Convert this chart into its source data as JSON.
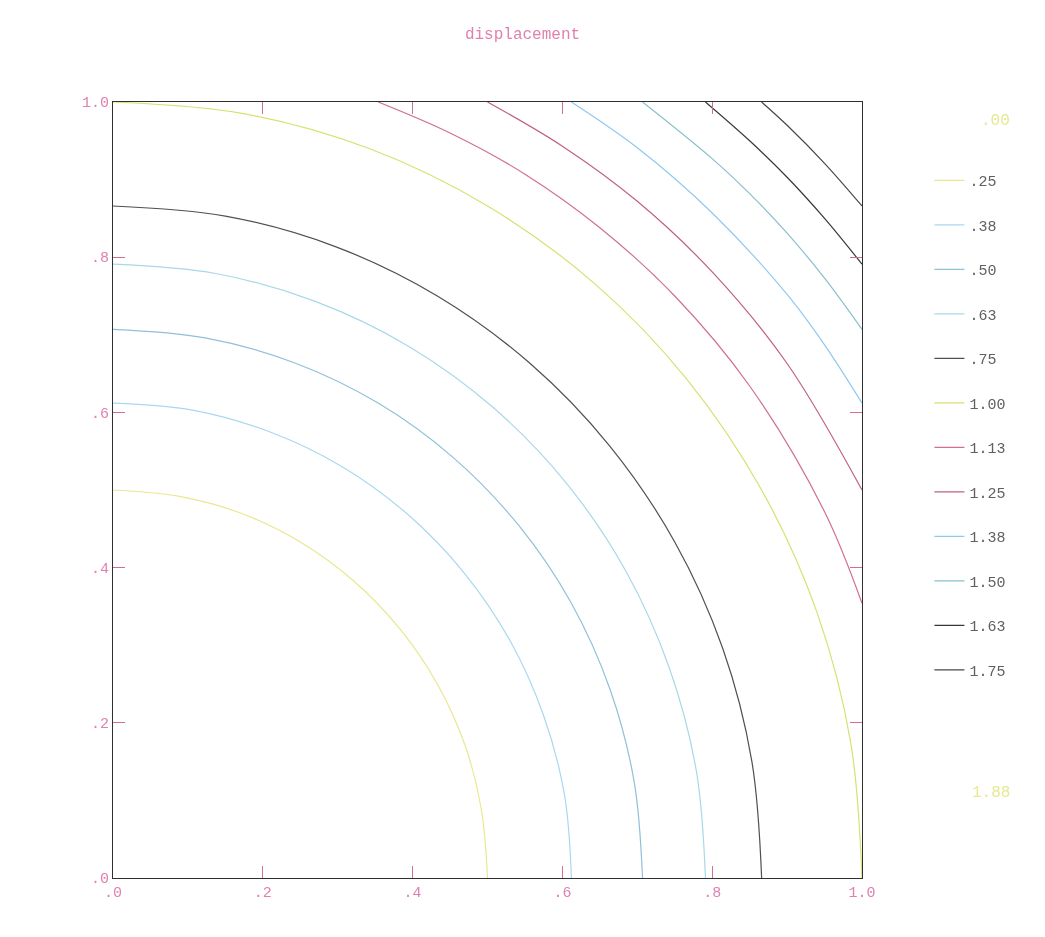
{
  "chart_data": {
    "type": "line",
    "title": "displacement",
    "xlim": [
      0,
      1
    ],
    "ylim": [
      0,
      1
    ],
    "xticks": [
      {
        "value": 0,
        "label": ".0"
      },
      {
        "value": 0.2,
        "label": ".2"
      },
      {
        "value": 0.4,
        "label": ".4"
      },
      {
        "value": 0.6,
        "label": ".6"
      },
      {
        "value": 0.8,
        "label": ".8"
      },
      {
        "value": 1,
        "label": "1.0"
      }
    ],
    "yticks": [
      {
        "value": 0,
        "label": ".0"
      },
      {
        "value": 0.2,
        "label": ".2"
      },
      {
        "value": 0.4,
        "label": ".4"
      },
      {
        "value": 0.6,
        "label": ".6"
      },
      {
        "value": 0.8,
        "label": ".8"
      },
      {
        "value": 1,
        "label": "1.0"
      }
    ],
    "legend": "right",
    "marker": "none",
    "line_style": "solid",
    "annotations": [
      ".00",
      "1.88"
    ],
    "series": [
      {
        "name": ".25",
        "color": "#e8e890",
        "x": [
          0.5,
          0.492,
          0.47,
          0.433,
          0.383,
          0.321,
          0.25,
          0.171,
          0.087,
          0
        ],
        "values": [
          0,
          0.087,
          0.171,
          0.25,
          0.321,
          0.383,
          0.433,
          0.47,
          0.492,
          0.5
        ]
      },
      {
        "name": ".38",
        "color": "#a8d8f0",
        "x": [
          0.612,
          0.603,
          0.575,
          0.53,
          0.469,
          0.393,
          0.306,
          0.209,
          0.106,
          0
        ],
        "values": [
          0,
          0.106,
          0.209,
          0.306,
          0.393,
          0.469,
          0.53,
          0.575,
          0.603,
          0.612
        ]
      },
      {
        "name": ".50",
        "color": "#90c0d8",
        "x": [
          0.707,
          0.696,
          0.664,
          0.612,
          0.542,
          0.454,
          0.354,
          0.242,
          0.123,
          0
        ],
        "values": [
          0,
          0.123,
          0.242,
          0.354,
          0.454,
          0.542,
          0.612,
          0.664,
          0.696,
          0.707
        ]
      },
      {
        "name": ".63",
        "color": "#a8d8e8",
        "x": [
          0.791,
          0.779,
          0.743,
          0.685,
          0.606,
          0.508,
          0.395,
          0.27,
          0.137,
          0
        ],
        "values": [
          0,
          0.137,
          0.27,
          0.395,
          0.508,
          0.606,
          0.685,
          0.743,
          0.779,
          0.791
        ]
      },
      {
        "name": ".75",
        "color": "#505050",
        "x": [
          0.866,
          0.853,
          0.814,
          0.75,
          0.663,
          0.557,
          0.433,
          0.296,
          0.15,
          0
        ],
        "values": [
          0,
          0.15,
          0.296,
          0.433,
          0.557,
          0.663,
          0.75,
          0.814,
          0.853,
          0.866
        ]
      },
      {
        "name": "1.00",
        "color": "#d8e070",
        "x": [
          1,
          0.985,
          0.94,
          0.866,
          0.766,
          0.643,
          0.5,
          0.342,
          0.174,
          0
        ],
        "values": [
          0,
          0.174,
          0.342,
          0.5,
          0.643,
          0.766,
          0.866,
          0.94,
          0.985,
          1
        ]
      },
      {
        "name": "1.13",
        "color": "#d07090",
        "x": [
          0.354,
          0.45,
          0.55,
          0.65,
          0.75,
          0.85,
          0.95,
          1
        ],
        "values": [
          1,
          0.96,
          0.907,
          0.838,
          0.75,
          0.634,
          0.472,
          0.354
        ]
      },
      {
        "name": "1.25",
        "color": "#c06080",
        "x": [
          0.5,
          0.6,
          0.7,
          0.8,
          0.9,
          1
        ],
        "values": [
          1,
          0.943,
          0.872,
          0.781,
          0.663,
          0.5
        ]
      },
      {
        "name": "1.38",
        "color": "#90c8f0",
        "x": [
          0.612,
          0.7,
          0.8,
          0.9,
          0.95,
          1
        ],
        "values": [
          1,
          0.941,
          0.857,
          0.752,
          0.687,
          0.612
        ]
      },
      {
        "name": "1.50",
        "color": "#88c0c8",
        "x": [
          0.707,
          0.8,
          0.85,
          0.9,
          0.95,
          1
        ],
        "values": [
          1,
          0.927,
          0.882,
          0.831,
          0.773,
          0.707
        ]
      },
      {
        "name": "1.63",
        "color": "#383838",
        "x": [
          0.791,
          0.85,
          0.9,
          0.95,
          1
        ],
        "values": [
          1,
          0.95,
          0.903,
          0.85,
          0.791
        ]
      },
      {
        "name": "1.75",
        "color": "#484848",
        "x": [
          0.866,
          0.9,
          0.95,
          1
        ],
        "values": [
          1,
          0.97,
          0.921,
          0.866
        ]
      }
    ]
  }
}
